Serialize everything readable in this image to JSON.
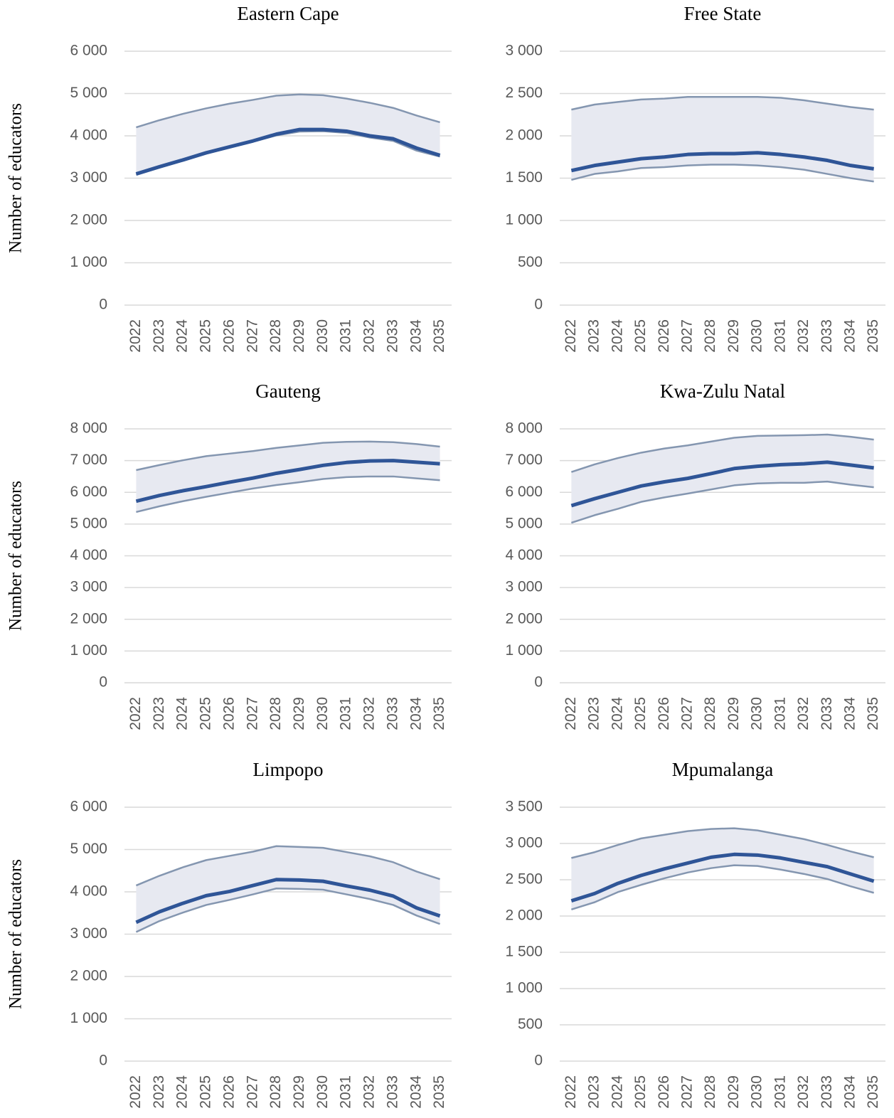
{
  "chart_data": [
    {
      "type": "line",
      "title": "Eastern Cape",
      "y_label": "Number of educators",
      "categories": [
        "2022",
        "2023",
        "2024",
        "2025",
        "2026",
        "2027",
        "2028",
        "2029",
        "2030",
        "2031",
        "2032",
        "2033",
        "2034",
        "2035"
      ],
      "series": [
        {
          "color": "#8496b0",
          "values": [
            4200,
            4370,
            4520,
            4650,
            4760,
            4850,
            4950,
            4980,
            4960,
            4880,
            4780,
            4660,
            4480,
            4320
          ]
        },
        {
          "color": "#2f5597",
          "values": [
            3100,
            3270,
            3430,
            3600,
            3740,
            3880,
            4040,
            4150,
            4150,
            4110,
            4000,
            3930,
            3710,
            3540
          ]
        },
        {
          "color": "#8496b0",
          "values": [
            3080,
            3250,
            3410,
            3580,
            3720,
            3860,
            4010,
            4100,
            4110,
            4070,
            3960,
            3880,
            3650,
            3510
          ]
        }
      ],
      "band_color": "#e7e9f1",
      "ylim": [
        0,
        6000
      ],
      "yticks": [
        0,
        {
          "value": 1000,
          "label": "1 000"
        },
        {
          "value": 2000,
          "label": "2 000"
        },
        {
          "value": 3000,
          "label": "3 000"
        },
        {
          "value": 4000,
          "label": "4 000"
        },
        {
          "value": 5000,
          "label": "5 000"
        },
        {
          "value": 6000,
          "label": "6 000"
        }
      ],
      "grid": true
    },
    {
      "type": "line",
      "title": "Free State",
      "categories": [
        "2022",
        "2023",
        "2024",
        "2025",
        "2026",
        "2027",
        "2028",
        "2029",
        "2030",
        "2031",
        "2032",
        "2033",
        "2034",
        "2035"
      ],
      "series": [
        {
          "color": "#8496b0",
          "values": [
            2310,
            2370,
            2400,
            2430,
            2440,
            2460,
            2460,
            2460,
            2460,
            2450,
            2420,
            2380,
            2340,
            2310
          ]
        },
        {
          "color": "#2f5597",
          "values": [
            1590,
            1650,
            1690,
            1730,
            1750,
            1780,
            1790,
            1790,
            1800,
            1780,
            1750,
            1710,
            1650,
            1610
          ]
        },
        {
          "color": "#8496b0",
          "values": [
            1480,
            1550,
            1580,
            1620,
            1630,
            1650,
            1660,
            1660,
            1650,
            1630,
            1600,
            1550,
            1500,
            1460
          ]
        }
      ],
      "band_color": "#e7e9f1",
      "ylim": [
        0,
        3000
      ],
      "yticks": [
        0,
        500,
        {
          "value": 1000,
          "label": "1 000"
        },
        {
          "value": 1500,
          "label": "1 500"
        },
        {
          "value": 2000,
          "label": "2 000"
        },
        {
          "value": 2500,
          "label": "2 500"
        },
        {
          "value": 3000,
          "label": "3 000"
        }
      ],
      "grid": true
    },
    {
      "type": "line",
      "title": "Gauteng",
      "y_label": "Number of educators",
      "categories": [
        "2022",
        "2023",
        "2024",
        "2025",
        "2026",
        "2027",
        "2028",
        "2029",
        "2030",
        "2031",
        "2032",
        "2033",
        "2034",
        "2035"
      ],
      "series": [
        {
          "color": "#8496b0",
          "values": [
            6700,
            6860,
            7010,
            7140,
            7220,
            7300,
            7400,
            7480,
            7560,
            7590,
            7600,
            7580,
            7520,
            7440
          ]
        },
        {
          "color": "#2f5597",
          "values": [
            5720,
            5900,
            6050,
            6180,
            6320,
            6450,
            6600,
            6720,
            6850,
            6940,
            6990,
            7000,
            6950,
            6900
          ]
        },
        {
          "color": "#8496b0",
          "values": [
            5380,
            5560,
            5720,
            5860,
            5990,
            6120,
            6230,
            6320,
            6420,
            6480,
            6500,
            6500,
            6440,
            6380
          ]
        }
      ],
      "band_color": "#e7e9f1",
      "ylim": [
        0,
        8000
      ],
      "yticks": [
        0,
        {
          "value": 1000,
          "label": "1 000"
        },
        {
          "value": 2000,
          "label": "2 000"
        },
        {
          "value": 3000,
          "label": "3 000"
        },
        {
          "value": 4000,
          "label": "4 000"
        },
        {
          "value": 5000,
          "label": "5 000"
        },
        {
          "value": 6000,
          "label": "6 000"
        },
        {
          "value": 7000,
          "label": "7 000"
        },
        {
          "value": 8000,
          "label": "8 000"
        }
      ],
      "grid": true
    },
    {
      "type": "line",
      "title": "Kwa-Zulu Natal",
      "categories": [
        "2022",
        "2023",
        "2024",
        "2025",
        "2026",
        "2027",
        "2028",
        "2029",
        "2030",
        "2031",
        "2032",
        "2033",
        "2034",
        "2035"
      ],
      "series": [
        {
          "color": "#8496b0",
          "values": [
            6640,
            6880,
            7080,
            7250,
            7380,
            7480,
            7600,
            7720,
            7780,
            7790,
            7800,
            7820,
            7750,
            7660
          ]
        },
        {
          "color": "#2f5597",
          "values": [
            5580,
            5800,
            6000,
            6200,
            6330,
            6440,
            6590,
            6750,
            6820,
            6870,
            6900,
            6950,
            6860,
            6770
          ]
        },
        {
          "color": "#8496b0",
          "values": [
            5040,
            5280,
            5480,
            5700,
            5840,
            5960,
            6090,
            6220,
            6280,
            6300,
            6300,
            6340,
            6240,
            6160
          ]
        }
      ],
      "band_color": "#e7e9f1",
      "ylim": [
        0,
        8000
      ],
      "yticks": [
        0,
        {
          "value": 1000,
          "label": "1 000"
        },
        {
          "value": 2000,
          "label": "2 000"
        },
        {
          "value": 3000,
          "label": "3 000"
        },
        {
          "value": 4000,
          "label": "4 000"
        },
        {
          "value": 5000,
          "label": "5 000"
        },
        {
          "value": 6000,
          "label": "6 000"
        },
        {
          "value": 7000,
          "label": "7 000"
        },
        {
          "value": 8000,
          "label": "8 000"
        }
      ],
      "grid": true
    },
    {
      "type": "line",
      "title": "Limpopo",
      "y_label": "Number of educators",
      "categories": [
        "2022",
        "2023",
        "2024",
        "2025",
        "2026",
        "2027",
        "2028",
        "2029",
        "2030",
        "2031",
        "2032",
        "2033",
        "2034",
        "2035"
      ],
      "series": [
        {
          "color": "#8496b0",
          "values": [
            4150,
            4380,
            4580,
            4750,
            4850,
            4950,
            5080,
            5060,
            5040,
            4940,
            4840,
            4700,
            4480,
            4300
          ]
        },
        {
          "color": "#2f5597",
          "values": [
            3280,
            3530,
            3730,
            3910,
            4010,
            4150,
            4290,
            4280,
            4250,
            4140,
            4040,
            3900,
            3620,
            3430
          ]
        },
        {
          "color": "#8496b0",
          "values": [
            3050,
            3310,
            3510,
            3690,
            3810,
            3940,
            4080,
            4070,
            4050,
            3940,
            3830,
            3690,
            3440,
            3240
          ]
        }
      ],
      "band_color": "#e7e9f1",
      "ylim": [
        0,
        6000
      ],
      "yticks": [
        0,
        {
          "value": 1000,
          "label": "1 000"
        },
        {
          "value": 2000,
          "label": "2 000"
        },
        {
          "value": 3000,
          "label": "3 000"
        },
        {
          "value": 4000,
          "label": "4 000"
        },
        {
          "value": 5000,
          "label": "5 000"
        },
        {
          "value": 6000,
          "label": "6 000"
        }
      ],
      "grid": true
    },
    {
      "type": "line",
      "title": "Mpumalanga",
      "categories": [
        "2022",
        "2023",
        "2024",
        "2025",
        "2026",
        "2027",
        "2028",
        "2029",
        "2030",
        "2031",
        "2032",
        "2033",
        "2034",
        "2035"
      ],
      "series": [
        {
          "color": "#8496b0",
          "values": [
            2800,
            2880,
            2980,
            3070,
            3120,
            3170,
            3200,
            3210,
            3180,
            3120,
            3060,
            2980,
            2890,
            2810
          ]
        },
        {
          "color": "#2f5597",
          "values": [
            2210,
            2310,
            2450,
            2560,
            2650,
            2730,
            2810,
            2850,
            2840,
            2800,
            2740,
            2680,
            2580,
            2480
          ]
        },
        {
          "color": "#8496b0",
          "values": [
            2090,
            2190,
            2330,
            2430,
            2520,
            2600,
            2660,
            2700,
            2690,
            2640,
            2580,
            2510,
            2410,
            2320
          ]
        }
      ],
      "band_color": "#e7e9f1",
      "ylim": [
        0,
        3500
      ],
      "yticks": [
        0,
        500,
        {
          "value": 1000,
          "label": "1 000"
        },
        {
          "value": 1500,
          "label": "1 500"
        },
        {
          "value": 2000,
          "label": "2 000"
        },
        {
          "value": 2500,
          "label": "2 500"
        },
        {
          "value": 3000,
          "label": "3 000"
        },
        {
          "value": 3500,
          "label": "3 500"
        }
      ],
      "grid": true
    }
  ]
}
